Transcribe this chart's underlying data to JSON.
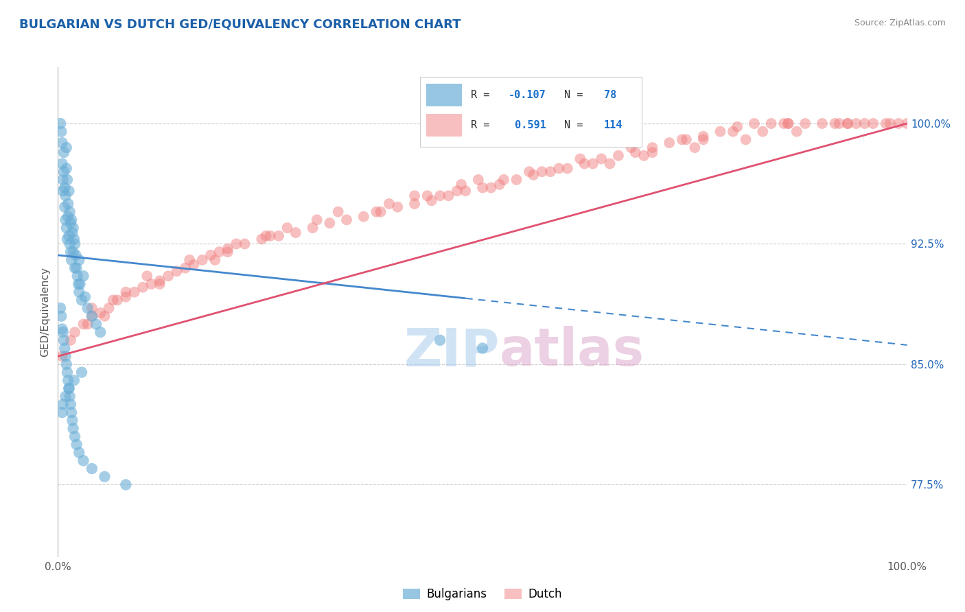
{
  "title": "BULGARIAN VS DUTCH GED/EQUIVALENCY CORRELATION CHART",
  "source": "Source: ZipAtlas.com",
  "ylabel": "GED/Equivalency",
  "ylabel_right_ticks": [
    77.5,
    85.0,
    92.5,
    100.0
  ],
  "ylabel_right_labels": [
    "77.5%",
    "85.0%",
    "92.5%",
    "100.0%"
  ],
  "xlim": [
    0.0,
    100.0
  ],
  "ylim": [
    73.0,
    103.5
  ],
  "bulgarian_color": "#6aaed6",
  "dutch_color": "#f08080",
  "dutch_line_color": "#e05070",
  "bulgarian_line_color": "#4488cc",
  "bg_color": "#ffffff",
  "legend_text_color": "#1a6fcc",
  "legend_label_color": "#333333",
  "watermark_zip_color": "#aaccee",
  "watermark_atlas_color": "#ddaacc",
  "title_color": "#1a5fa8",
  "source_color": "#888888",
  "ylabel_color": "#555555",
  "right_tick_color": "#2266bb",
  "grid_color": "#cccccc",
  "bul_line_y0": 91.8,
  "bul_line_y1": 86.2,
  "bul_solid_x_end": 48.0,
  "bul_dash_x_start": 48.0,
  "bul_dash_x_end": 100.0,
  "dutch_line_y0": 85.5,
  "dutch_line_y1": 100.0,
  "bulgarian_scatter_x": [
    0.3,
    0.4,
    0.5,
    0.5,
    0.6,
    0.6,
    0.7,
    0.7,
    0.8,
    0.8,
    0.9,
    0.9,
    1.0,
    1.0,
    1.0,
    1.1,
    1.1,
    1.2,
    1.2,
    1.3,
    1.3,
    1.4,
    1.4,
    1.5,
    1.5,
    1.6,
    1.6,
    1.7,
    1.8,
    1.8,
    1.9,
    2.0,
    2.0,
    2.1,
    2.2,
    2.3,
    2.4,
    2.5,
    2.5,
    2.6,
    2.8,
    3.0,
    3.2,
    3.5,
    4.0,
    4.5,
    5.0,
    0.3,
    0.4,
    0.5,
    0.6,
    0.7,
    0.8,
    0.9,
    1.0,
    1.1,
    1.2,
    1.3,
    1.4,
    1.5,
    1.6,
    1.7,
    1.8,
    2.0,
    2.2,
    2.5,
    3.0,
    4.0,
    5.5,
    8.0,
    45.0,
    50.0,
    2.8,
    1.9,
    1.3,
    0.9,
    0.6,
    0.5
  ],
  "bulgarian_scatter_y": [
    100.0,
    99.5,
    98.8,
    97.5,
    96.5,
    95.8,
    98.2,
    97.0,
    96.0,
    94.8,
    95.5,
    94.0,
    98.5,
    97.2,
    93.5,
    96.5,
    92.8,
    95.0,
    94.2,
    95.8,
    93.0,
    94.5,
    92.5,
    93.8,
    92.0,
    94.0,
    91.5,
    93.2,
    93.5,
    92.0,
    92.8,
    92.5,
    91.0,
    91.8,
    91.0,
    90.5,
    90.0,
    91.5,
    89.5,
    90.0,
    89.0,
    90.5,
    89.2,
    88.5,
    88.0,
    87.5,
    87.0,
    88.5,
    88.0,
    87.2,
    87.0,
    86.5,
    86.0,
    85.5,
    85.0,
    84.5,
    84.0,
    83.5,
    83.0,
    82.5,
    82.0,
    81.5,
    81.0,
    80.5,
    80.0,
    79.5,
    79.0,
    78.5,
    78.0,
    77.5,
    86.5,
    86.0,
    84.5,
    84.0,
    83.5,
    83.0,
    82.5,
    82.0
  ],
  "dutch_scatter_x": [
    1.5,
    2.0,
    3.0,
    4.0,
    5.0,
    6.0,
    7.0,
    8.0,
    9.0,
    10.0,
    11.0,
    12.0,
    13.0,
    14.0,
    15.0,
    16.0,
    17.0,
    18.0,
    19.0,
    20.0,
    22.0,
    24.0,
    26.0,
    28.0,
    30.0,
    32.0,
    34.0,
    36.0,
    38.0,
    40.0,
    42.0,
    44.0,
    46.0,
    48.0,
    50.0,
    52.0,
    54.0,
    56.0,
    58.0,
    60.0,
    62.0,
    64.0,
    66.0,
    68.0,
    70.0,
    72.0,
    74.0,
    76.0,
    78.0,
    80.0,
    82.0,
    84.0,
    86.0,
    88.0,
    90.0,
    92.0,
    94.0,
    96.0,
    98.0,
    100.0,
    3.5,
    6.5,
    10.5,
    15.5,
    21.0,
    27.0,
    33.0,
    39.0,
    45.0,
    51.0,
    57.0,
    63.0,
    69.0,
    75.0,
    81.0,
    87.0,
    93.0,
    99.0,
    5.5,
    12.0,
    18.5,
    24.5,
    30.5,
    37.5,
    43.5,
    49.5,
    55.5,
    61.5,
    67.5,
    73.5,
    79.5,
    85.5,
    91.5,
    97.5,
    8.0,
    25.0,
    42.0,
    59.0,
    76.0,
    93.0,
    4.0,
    20.0,
    47.0,
    65.0,
    83.0,
    47.5,
    52.5,
    0.5,
    70.0,
    86.0,
    95.0
  ],
  "dutch_scatter_y": [
    86.5,
    87.0,
    87.5,
    88.0,
    88.2,
    88.5,
    89.0,
    89.2,
    89.5,
    89.8,
    90.0,
    90.2,
    90.5,
    90.8,
    91.0,
    91.2,
    91.5,
    91.8,
    92.0,
    92.2,
    92.5,
    92.8,
    93.0,
    93.2,
    93.5,
    93.8,
    94.0,
    94.2,
    94.5,
    94.8,
    95.0,
    95.2,
    95.5,
    95.8,
    96.0,
    96.2,
    96.5,
    96.8,
    97.0,
    97.2,
    97.5,
    97.8,
    98.0,
    98.2,
    98.5,
    98.8,
    99.0,
    99.2,
    99.5,
    99.8,
    100.0,
    100.0,
    100.0,
    100.0,
    100.0,
    100.0,
    100.0,
    100.0,
    100.0,
    100.0,
    87.5,
    89.0,
    90.5,
    91.5,
    92.5,
    93.5,
    94.5,
    95.0,
    95.5,
    96.0,
    97.0,
    97.5,
    98.0,
    98.5,
    99.0,
    99.5,
    100.0,
    100.0,
    88.0,
    90.0,
    91.5,
    93.0,
    94.0,
    94.5,
    95.5,
    96.5,
    97.0,
    97.8,
    98.5,
    99.0,
    99.5,
    100.0,
    100.0,
    100.0,
    89.5,
    93.0,
    95.5,
    97.2,
    99.0,
    100.0,
    88.5,
    92.0,
    95.8,
    97.5,
    99.5,
    96.2,
    96.5,
    85.5,
    98.2,
    100.0,
    100.0
  ]
}
